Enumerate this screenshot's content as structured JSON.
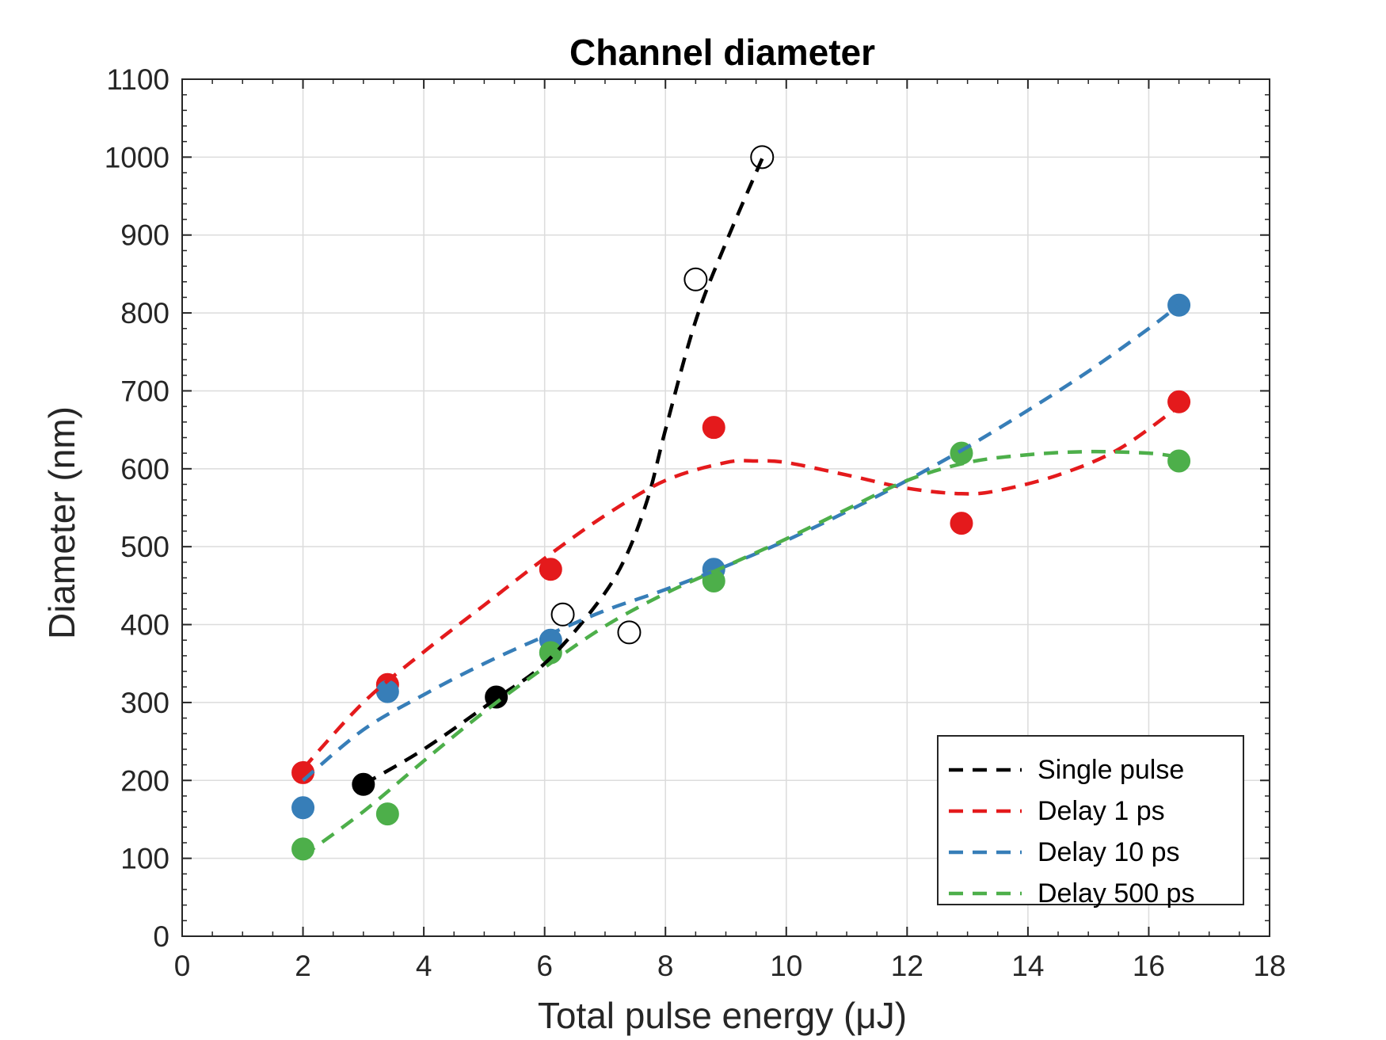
{
  "chart_data": {
    "type": "scatter",
    "title": "Channel diameter",
    "xlabel": "Total pulse energy (μJ)",
    "ylabel": "Diameter (nm)",
    "xlim": [
      0,
      18
    ],
    "ylim": [
      0,
      1100
    ],
    "xticks": [
      0,
      2,
      4,
      6,
      8,
      10,
      12,
      14,
      16,
      18
    ],
    "yticks": [
      0,
      100,
      200,
      300,
      400,
      500,
      600,
      700,
      800,
      900,
      1000,
      1100
    ],
    "grid": true,
    "legend_position": "bottom-right",
    "series": [
      {
        "name": "Single pulse",
        "color": "#000000",
        "points": [
          {
            "x": 3.0,
            "y": 195,
            "filled": true
          },
          {
            "x": 5.2,
            "y": 307,
            "filled": true
          },
          {
            "x": 6.3,
            "y": 413,
            "filled": false
          },
          {
            "x": 7.4,
            "y": 390,
            "filled": false
          },
          {
            "x": 8.5,
            "y": 843,
            "filled": false
          },
          {
            "x": 9.6,
            "y": 1000,
            "filled": false
          }
        ],
        "fit": [
          [
            3.0,
            195
          ],
          [
            4.0,
            240
          ],
          [
            5.2,
            305
          ],
          [
            6.0,
            350
          ],
          [
            6.8,
            420
          ],
          [
            7.3,
            480
          ],
          [
            7.7,
            560
          ],
          [
            8.0,
            650
          ],
          [
            8.5,
            790
          ],
          [
            9.0,
            890
          ],
          [
            9.6,
            998
          ]
        ]
      },
      {
        "name": "Delay 1 ps",
        "color": "#e41a1c",
        "points": [
          {
            "x": 2.0,
            "y": 210,
            "filled": true
          },
          {
            "x": 3.4,
            "y": 323,
            "filled": true
          },
          {
            "x": 6.1,
            "y": 471,
            "filled": true
          },
          {
            "x": 8.8,
            "y": 653,
            "filled": true
          },
          {
            "x": 12.9,
            "y": 530,
            "filled": true
          },
          {
            "x": 16.5,
            "y": 686,
            "filled": true
          }
        ],
        "fit": [
          [
            2.0,
            215
          ],
          [
            3.0,
            300
          ],
          [
            4.0,
            365
          ],
          [
            5.0,
            425
          ],
          [
            6.0,
            485
          ],
          [
            7.0,
            540
          ],
          [
            8.0,
            585
          ],
          [
            9.0,
            608
          ],
          [
            9.5,
            610
          ],
          [
            10.0,
            608
          ],
          [
            11.0,
            592
          ],
          [
            12.0,
            575
          ],
          [
            12.9,
            568
          ],
          [
            13.5,
            572
          ],
          [
            14.5,
            592
          ],
          [
            15.5,
            625
          ],
          [
            16.5,
            680
          ]
        ]
      },
      {
        "name": "Delay 10 ps",
        "color": "#377eb8",
        "points": [
          {
            "x": 2.0,
            "y": 165,
            "filled": true
          },
          {
            "x": 3.4,
            "y": 314,
            "filled": true
          },
          {
            "x": 6.1,
            "y": 380,
            "filled": true
          },
          {
            "x": 8.8,
            "y": 471,
            "filled": true
          },
          {
            "x": 16.5,
            "y": 810,
            "filled": true
          }
        ],
        "fit": [
          [
            2.0,
            200
          ],
          [
            3.0,
            265
          ],
          [
            4.0,
            310
          ],
          [
            5.0,
            350
          ],
          [
            6.0,
            385
          ],
          [
            7.0,
            418
          ],
          [
            8.0,
            445
          ],
          [
            9.0,
            475
          ],
          [
            10.0,
            508
          ],
          [
            11.0,
            545
          ],
          [
            12.0,
            585
          ],
          [
            13.0,
            628
          ],
          [
            14.0,
            675
          ],
          [
            15.0,
            725
          ],
          [
            16.0,
            780
          ],
          [
            16.5,
            810
          ]
        ]
      },
      {
        "name": "Delay 500 ps",
        "color": "#4daf4a",
        "points": [
          {
            "x": 2.0,
            "y": 112,
            "filled": true
          },
          {
            "x": 3.4,
            "y": 157,
            "filled": true
          },
          {
            "x": 6.1,
            "y": 364,
            "filled": true
          },
          {
            "x": 8.8,
            "y": 456,
            "filled": true
          },
          {
            "x": 12.9,
            "y": 620,
            "filled": true
          },
          {
            "x": 16.5,
            "y": 610,
            "filled": true
          }
        ],
        "fit": [
          [
            2.0,
            103
          ],
          [
            3.0,
            160
          ],
          [
            4.0,
            225
          ],
          [
            5.0,
            288
          ],
          [
            6.0,
            345
          ],
          [
            7.0,
            398
          ],
          [
            8.0,
            440
          ],
          [
            9.0,
            475
          ],
          [
            10.0,
            510
          ],
          [
            11.0,
            548
          ],
          [
            12.0,
            585
          ],
          [
            13.0,
            608
          ],
          [
            14.0,
            618
          ],
          [
            15.0,
            622
          ],
          [
            16.0,
            620
          ],
          [
            16.5,
            615
          ]
        ]
      }
    ]
  }
}
